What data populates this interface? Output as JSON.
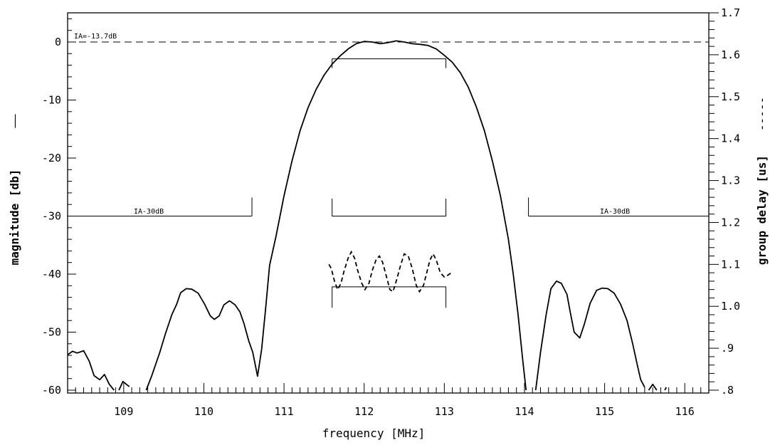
{
  "chart_data": {
    "type": "line",
    "xlabel": "frequency [MHz]",
    "ylabel_left": "magnitude [db]",
    "ylabel_right": "group delay [us]",
    "legend_left": "——",
    "legend_right": "-----",
    "xlim": [
      108.3,
      116.3
    ],
    "ylim_left": [
      -60,
      5
    ],
    "ylim_right": [
      0.8,
      1.7
    ],
    "xticks": [
      109,
      110,
      111,
      112,
      113,
      114,
      115,
      116
    ],
    "xtick_labels": [
      "109",
      "110",
      "111",
      "112",
      "113",
      "114",
      "115",
      "116"
    ],
    "yticks_left": [
      0,
      -10,
      -20,
      -30,
      -40,
      -50,
      -60
    ],
    "ytick_labels_left": [
      "0",
      "-10",
      "-20",
      "-30",
      "-40",
      "-50",
      "-60"
    ],
    "yticks_right": [
      1.7,
      1.6,
      1.5,
      1.4,
      1.3,
      1.2,
      1.1,
      1.0,
      0.9,
      0.8
    ],
    "ytick_labels_right": [
      "1.7",
      "1.6",
      "1.5",
      "1.4",
      "1.3",
      "1.2",
      "1.1",
      "1.0",
      ".9",
      ".8"
    ],
    "annotations": {
      "ia_ref": "IA=-13.7dB",
      "ia_left": "IA-30dB",
      "ia_right": "IA-30dB"
    },
    "reference_line_db": 0,
    "stopband_mask": [
      {
        "x": [
          108.3,
          110.6
        ],
        "y": -30,
        "edge_top": -26.8
      },
      {
        "x": [
          114.05,
          116.3
        ],
        "y": -30,
        "edge_top": -26.8
      }
    ],
    "passband_masks": [
      {
        "x": [
          111.6,
          113.02
        ],
        "y": -2.9,
        "edge_bottom": -4.5
      },
      {
        "x": [
          111.6,
          113.02
        ],
        "y": -30,
        "edge_top": -27
      },
      {
        "x": [
          111.6,
          113.02
        ],
        "y": -42.2,
        "edge_bottom": -45.8
      }
    ],
    "series": [
      {
        "name": "magnitude",
        "axis": "left",
        "style": "solid",
        "segments": [
          [
            [
              108.3,
              -53.9
            ],
            [
              108.36,
              -53.3
            ],
            [
              108.42,
              -53.6
            ],
            [
              108.5,
              -53.2
            ],
            [
              108.57,
              -55.0
            ],
            [
              108.63,
              -57.5
            ],
            [
              108.7,
              -58.2
            ],
            [
              108.76,
              -57.3
            ],
            [
              108.82,
              -59.0
            ],
            [
              108.88,
              -60.0
            ]
          ],
          [
            [
              108.94,
              -60.0
            ],
            [
              108.99,
              -58.5
            ],
            [
              109.07,
              -59.4
            ]
          ],
          [
            [
              109.28,
              -60.0
            ],
            [
              109.35,
              -57.5
            ],
            [
              109.45,
              -53.5
            ],
            [
              109.52,
              -50.3
            ],
            [
              109.6,
              -47.0
            ],
            [
              109.66,
              -45.2
            ],
            [
              109.71,
              -43.2
            ],
            [
              109.78,
              -42.5
            ],
            [
              109.85,
              -42.6
            ],
            [
              109.93,
              -43.3
            ],
            [
              110.01,
              -45.2
            ],
            [
              110.08,
              -47.2
            ],
            [
              110.13,
              -47.8
            ],
            [
              110.19,
              -47.2
            ],
            [
              110.25,
              -45.3
            ],
            [
              110.32,
              -44.6
            ],
            [
              110.39,
              -45.3
            ],
            [
              110.45,
              -46.5
            ],
            [
              110.5,
              -48.5
            ],
            [
              110.56,
              -51.5
            ],
            [
              110.61,
              -53.5
            ],
            [
              110.67,
              -57.6
            ],
            [
              110.72,
              -53.0
            ],
            [
              110.77,
              -46.0
            ],
            [
              110.82,
              -38.5
            ],
            [
              110.9,
              -33.5
            ],
            [
              111.0,
              -26.5
            ],
            [
              111.1,
              -20.5
            ],
            [
              111.2,
              -15.3
            ],
            [
              111.3,
              -11.3
            ],
            [
              111.4,
              -8.2
            ],
            [
              111.5,
              -5.7
            ],
            [
              111.6,
              -3.8
            ],
            [
              111.7,
              -2.4
            ],
            [
              111.8,
              -1.2
            ],
            [
              111.9,
              -0.3
            ],
            [
              112.0,
              0.1
            ],
            [
              112.1,
              0.0
            ],
            [
              112.2,
              -0.3
            ],
            [
              112.3,
              -0.1
            ],
            [
              112.4,
              0.2
            ],
            [
              112.5,
              0.0
            ],
            [
              112.6,
              -0.3
            ],
            [
              112.7,
              -0.4
            ],
            [
              112.8,
              -0.6
            ],
            [
              112.9,
              -1.2
            ],
            [
              113.0,
              -2.3
            ],
            [
              113.1,
              -3.5
            ],
            [
              113.2,
              -5.3
            ],
            [
              113.3,
              -7.8
            ],
            [
              113.4,
              -11.2
            ],
            [
              113.5,
              -15.3
            ],
            [
              113.6,
              -20.5
            ],
            [
              113.7,
              -26.5
            ],
            [
              113.8,
              -34.0
            ],
            [
              113.86,
              -40.0
            ],
            [
              113.92,
              -47.0
            ],
            [
              113.98,
              -55.0
            ],
            [
              114.02,
              -60.0
            ]
          ],
          [
            [
              114.14,
              -60.0
            ],
            [
              114.2,
              -53.5
            ],
            [
              114.27,
              -47.0
            ],
            [
              114.33,
              -42.5
            ],
            [
              114.4,
              -41.2
            ],
            [
              114.46,
              -41.6
            ],
            [
              114.53,
              -43.5
            ],
            [
              114.57,
              -46.5
            ],
            [
              114.62,
              -50.0
            ],
            [
              114.69,
              -51.0
            ],
            [
              114.75,
              -48.5
            ],
            [
              114.82,
              -45.0
            ],
            [
              114.9,
              -42.8
            ],
            [
              114.97,
              -42.4
            ],
            [
              115.04,
              -42.5
            ],
            [
              115.12,
              -43.3
            ],
            [
              115.2,
              -45.2
            ],
            [
              115.28,
              -48.0
            ],
            [
              115.35,
              -52.0
            ],
            [
              115.41,
              -55.8
            ],
            [
              115.45,
              -58.2
            ],
            [
              115.5,
              -59.5
            ]
          ],
          [
            [
              115.55,
              -60.0
            ],
            [
              115.6,
              -59.0
            ],
            [
              115.65,
              -60.0
            ]
          ],
          [
            [
              115.75,
              -60.0
            ],
            [
              115.77,
              -59.5
            ]
          ]
        ]
      },
      {
        "name": "group delay",
        "axis": "right",
        "style": "dashed",
        "points": [
          [
            111.56,
            1.1
          ],
          [
            111.59,
            1.09
          ],
          [
            111.63,
            1.06
          ],
          [
            111.67,
            1.04
          ],
          [
            111.71,
            1.055
          ],
          [
            111.75,
            1.085
          ],
          [
            111.8,
            1.115
          ],
          [
            111.84,
            1.13
          ],
          [
            111.88,
            1.115
          ],
          [
            111.92,
            1.085
          ],
          [
            111.97,
            1.055
          ],
          [
            112.01,
            1.04
          ],
          [
            112.06,
            1.055
          ],
          [
            112.1,
            1.085
          ],
          [
            112.15,
            1.112
          ],
          [
            112.19,
            1.12
          ],
          [
            112.23,
            1.105
          ],
          [
            112.28,
            1.07
          ],
          [
            112.32,
            1.04
          ],
          [
            112.36,
            1.035
          ],
          [
            112.4,
            1.06
          ],
          [
            112.45,
            1.095
          ],
          [
            112.5,
            1.125
          ],
          [
            112.55,
            1.12
          ],
          [
            112.6,
            1.09
          ],
          [
            112.65,
            1.05
          ],
          [
            112.69,
            1.035
          ],
          [
            112.74,
            1.05
          ],
          [
            112.78,
            1.08
          ],
          [
            112.82,
            1.11
          ],
          [
            112.86,
            1.125
          ],
          [
            112.9,
            1.11
          ],
          [
            112.95,
            1.08
          ],
          [
            113.0,
            1.07
          ],
          [
            113.05,
            1.075
          ],
          [
            113.1,
            1.082
          ]
        ]
      }
    ]
  }
}
